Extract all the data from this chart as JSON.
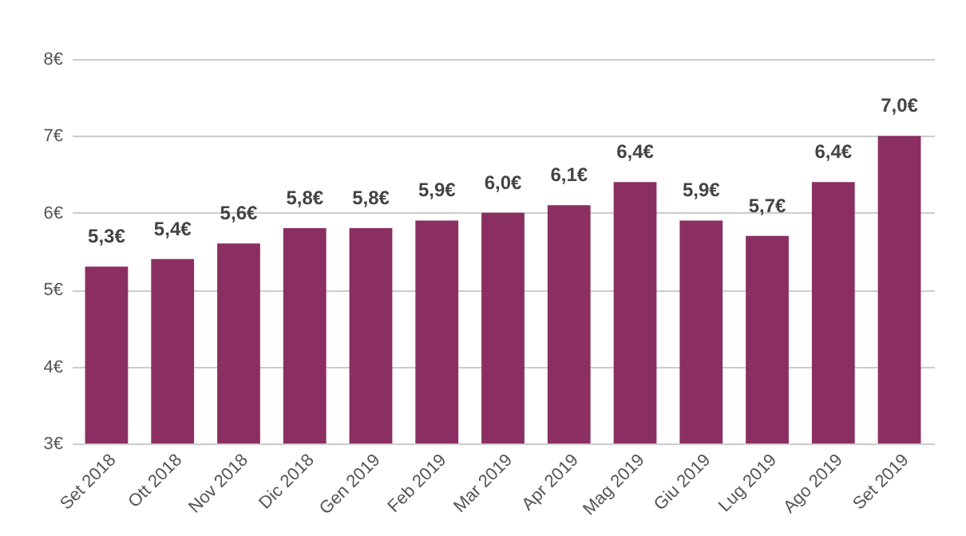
{
  "chart_data": {
    "type": "bar",
    "categories": [
      "Set 2018",
      "Ott 2018",
      "Nov 2018",
      "Dic 2018",
      "Gen 2019",
      "Feb 2019",
      "Mar 2019",
      "Apr 2019",
      "Mag 2019",
      "Giu 2019",
      "Lug 2019",
      "Ago 2019",
      "Set 2019"
    ],
    "values": [
      5.3,
      5.4,
      5.6,
      5.8,
      5.8,
      5.9,
      6.0,
      6.1,
      6.4,
      5.9,
      5.7,
      6.4,
      7.0
    ],
    "value_labels": [
      "5,3€",
      "5,4€",
      "5,6€",
      "5,8€",
      "5,8€",
      "5,9€",
      "6,0€",
      "6,1€",
      "6,4€",
      "5,9€",
      "5,7€",
      "6,4€",
      "7,0€"
    ],
    "color": "#8b2f62",
    "ylim": [
      3,
      8
    ],
    "yticks": [
      {
        "value": 3,
        "label": "3€"
      },
      {
        "value": 4,
        "label": "4€"
      },
      {
        "value": 5,
        "label": "5€"
      },
      {
        "value": 6,
        "label": "6€"
      },
      {
        "value": 7,
        "label": "7€"
      },
      {
        "value": 8,
        "label": "8€"
      }
    ],
    "grid": "y"
  }
}
